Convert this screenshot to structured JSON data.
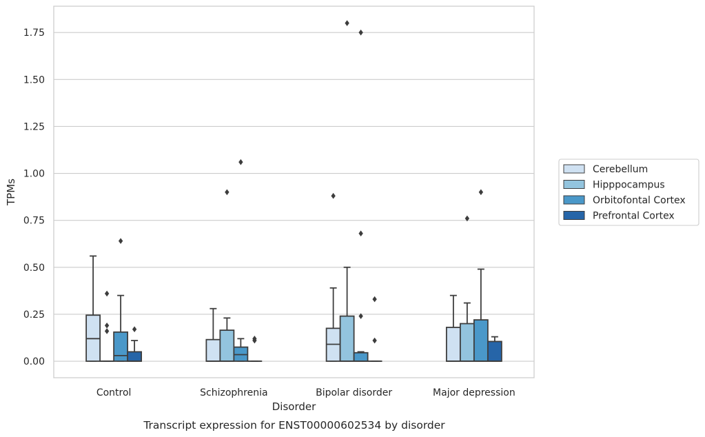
{
  "chart_data": {
    "type": "box",
    "caption": "Transcript expression for ENST00000602534 by disorder",
    "xlabel": "Disorder",
    "ylabel": "TPMs",
    "ylim": [
      -0.088,
      1.89
    ],
    "yticks": [
      0.0,
      0.25,
      0.5,
      0.75,
      1.0,
      1.25,
      1.5,
      1.75
    ],
    "ytick_labels": [
      "0.00",
      "0.25",
      "0.50",
      "0.75",
      "1.00",
      "1.25",
      "1.50",
      "1.75"
    ],
    "grid": "horizontal",
    "legend_position": "right",
    "categories": [
      "Control",
      "Schizophrenia",
      "Bipolar disorder",
      "Major depression"
    ],
    "series": [
      {
        "name": "Cerebellum",
        "color": "#cfe1f2",
        "boxes": [
          {
            "q1": 0.0,
            "median": 0.12,
            "q3": 0.245,
            "whisker_low": 0.0,
            "whisker_high": 0.56,
            "outliers": []
          },
          {
            "q1": 0.0,
            "median": 0.0,
            "q3": 0.115,
            "whisker_low": 0.0,
            "whisker_high": 0.28,
            "outliers": []
          },
          {
            "q1": 0.0,
            "median": 0.09,
            "q3": 0.175,
            "whisker_low": 0.0,
            "whisker_high": 0.39,
            "outliers": [
              0.88
            ]
          },
          {
            "q1": 0.0,
            "median": 0.0,
            "q3": 0.18,
            "whisker_low": 0.0,
            "whisker_high": 0.35,
            "outliers": []
          }
        ]
      },
      {
        "name": "Hipppocampus",
        "color": "#93c4de",
        "boxes": [
          {
            "q1": 0.0,
            "median": 0.0,
            "q3": 0.0,
            "whisker_low": 0.0,
            "whisker_high": 0.0,
            "outliers": [
              0.16,
              0.19,
              0.36
            ]
          },
          {
            "q1": 0.0,
            "median": 0.0,
            "q3": 0.165,
            "whisker_low": 0.0,
            "whisker_high": 0.23,
            "outliers": [
              0.9
            ]
          },
          {
            "q1": 0.0,
            "median": 0.0,
            "q3": 0.24,
            "whisker_low": 0.0,
            "whisker_high": 0.5,
            "outliers": [
              1.8
            ]
          },
          {
            "q1": 0.0,
            "median": 0.0,
            "q3": 0.2,
            "whisker_low": 0.0,
            "whisker_high": 0.31,
            "outliers": [
              0.76
            ]
          }
        ]
      },
      {
        "name": "Orbitofontal Cortex",
        "color": "#4a98c9",
        "boxes": [
          {
            "q1": 0.0,
            "median": 0.03,
            "q3": 0.155,
            "whisker_low": 0.0,
            "whisker_high": 0.35,
            "outliers": [
              0.64
            ]
          },
          {
            "q1": 0.0,
            "median": 0.035,
            "q3": 0.075,
            "whisker_low": 0.0,
            "whisker_high": 0.12,
            "outliers": [
              1.06
            ]
          },
          {
            "q1": 0.0,
            "median": 0.0,
            "q3": 0.045,
            "whisker_low": 0.0,
            "whisker_high": 0.05,
            "outliers": [
              0.24,
              0.68,
              1.75
            ]
          },
          {
            "q1": 0.0,
            "median": 0.0,
            "q3": 0.22,
            "whisker_low": 0.0,
            "whisker_high": 0.49,
            "outliers": [
              0.9
            ]
          }
        ]
      },
      {
        "name": "Prefrontal Cortex",
        "color": "#2665a8",
        "boxes": [
          {
            "q1": 0.0,
            "median": 0.0,
            "q3": 0.05,
            "whisker_low": 0.0,
            "whisker_high": 0.11,
            "outliers": [
              0.17
            ]
          },
          {
            "q1": 0.0,
            "median": 0.0,
            "q3": 0.0,
            "whisker_low": 0.0,
            "whisker_high": 0.0,
            "outliers": [
              0.11,
              0.12
            ]
          },
          {
            "q1": 0.0,
            "median": 0.0,
            "q3": 0.0,
            "whisker_low": 0.0,
            "whisker_high": 0.0,
            "outliers": [
              0.11,
              0.33
            ]
          },
          {
            "q1": 0.0,
            "median": 0.0,
            "q3": 0.105,
            "whisker_low": 0.0,
            "whisker_high": 0.13,
            "outliers": []
          }
        ]
      }
    ]
  }
}
